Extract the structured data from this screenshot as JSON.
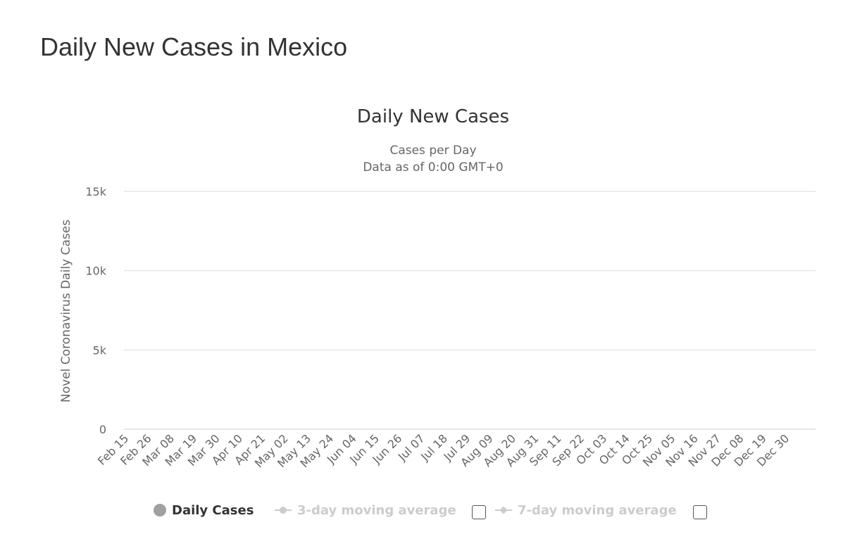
{
  "page": {
    "title": "Daily New Cases in Mexico"
  },
  "chart_data": {
    "type": "bar",
    "title": "Daily New Cases",
    "subtitle": [
      "Cases per Day",
      "Data as of 0:00 GMT+0"
    ],
    "ylabel": "Novel Coronavirus Daily Cases",
    "xlabel": "",
    "ylim": [
      0,
      15000
    ],
    "y_ticks": [
      "0",
      "5k",
      "10k",
      "15k"
    ],
    "x_ticks": [
      "Feb 15",
      "Feb 26",
      "Mar 08",
      "Mar 19",
      "Mar 30",
      "Apr 10",
      "Apr 21",
      "May 02",
      "May 13",
      "May 24",
      "Jun 04",
      "Jun 15",
      "Jun 26",
      "Jul 07",
      "Jul 18",
      "Jul 29",
      "Aug 09",
      "Aug 20",
      "Aug 31",
      "Sep 11",
      "Sep 22",
      "Oct 03",
      "Oct 14",
      "Oct 25",
      "Nov 05",
      "Nov 16",
      "Nov 27",
      "Dec 08",
      "Dec 19",
      "Dec 30"
    ],
    "start_date": "2020-02-15",
    "grid": true,
    "series": [
      {
        "name": "Daily Cases",
        "color": "#a0a0a0",
        "values": [
          0,
          0,
          0,
          0,
          0,
          0,
          0,
          0,
          0,
          0,
          0,
          0,
          0,
          0,
          0,
          0,
          0,
          0,
          0,
          0,
          0,
          0,
          0,
          0,
          0,
          0,
          0,
          0,
          0,
          0,
          0,
          0,
          0,
          0,
          0,
          0,
          0,
          0,
          0,
          0,
          0,
          0,
          0,
          0,
          0,
          0,
          0,
          0,
          0,
          0,
          0,
          0,
          0,
          0,
          0,
          0,
          0,
          0,
          0,
          0,
          0,
          0,
          0,
          0,
          0,
          0,
          0,
          0,
          0,
          0,
          0,
          0,
          0,
          0,
          0,
          0,
          0,
          0,
          0,
          0,
          0,
          0,
          0,
          0,
          0,
          0,
          0,
          0,
          0,
          0,
          0,
          0,
          0,
          0,
          0,
          0,
          0,
          0,
          0,
          0,
          0,
          0,
          0,
          0,
          0,
          0,
          0,
          0,
          0,
          0,
          0,
          0,
          0,
          0,
          0,
          0,
          0,
          0,
          0,
          0,
          0,
          0,
          0,
          0,
          0,
          0,
          0,
          0,
          0,
          0,
          0,
          0,
          0,
          0,
          0,
          0,
          0,
          0,
          0,
          0,
          0,
          0,
          0,
          0,
          0,
          0,
          0,
          0,
          0,
          0,
          0,
          0,
          0,
          0,
          0,
          0,
          0,
          0,
          0,
          0,
          0,
          0,
          0,
          0,
          0,
          0,
          0,
          0,
          0,
          0,
          0,
          0,
          0,
          0,
          0,
          0,
          0,
          0,
          0,
          0,
          0,
          0,
          0,
          0,
          0,
          0,
          0,
          0,
          0,
          0,
          0,
          0,
          0,
          0,
          0,
          0,
          0,
          0,
          0,
          0,
          0,
          0,
          0,
          0,
          0,
          0,
          0,
          0,
          0,
          0,
          0,
          0,
          0,
          0,
          0,
          0,
          0,
          0,
          0,
          0,
          0,
          0,
          0,
          0,
          0,
          0,
          0,
          0,
          0,
          0,
          0,
          0,
          0,
          0,
          0,
          0,
          0,
          0,
          0,
          0,
          0,
          0,
          0,
          0,
          0,
          0,
          0,
          0,
          0,
          0,
          0,
          0,
          0,
          0,
          0,
          0,
          0,
          0,
          0,
          0,
          0,
          0,
          0,
          0,
          0,
          0,
          0,
          0,
          0,
          0,
          0,
          0,
          0,
          0,
          0,
          0,
          0,
          0,
          0,
          0,
          0,
          0,
          0,
          0,
          0,
          0,
          0,
          0,
          0,
          0,
          0,
          0,
          0,
          0,
          0,
          0,
          0,
          0,
          0,
          0,
          0,
          0,
          0,
          0,
          0,
          0,
          0,
          0,
          0,
          0,
          0,
          0,
          0,
          0,
          0,
          0,
          0,
          0,
          0,
          0,
          0,
          0,
          0,
          0,
          0,
          0,
          0,
          0,
          0,
          0,
          0,
          0,
          0,
          0
        ]
      },
      {
        "name": "3-day moving average",
        "color": "#cccccc",
        "visible": false
      },
      {
        "name": "7-day moving average",
        "color": "#cccccc",
        "visible": false
      }
    ]
  }
}
